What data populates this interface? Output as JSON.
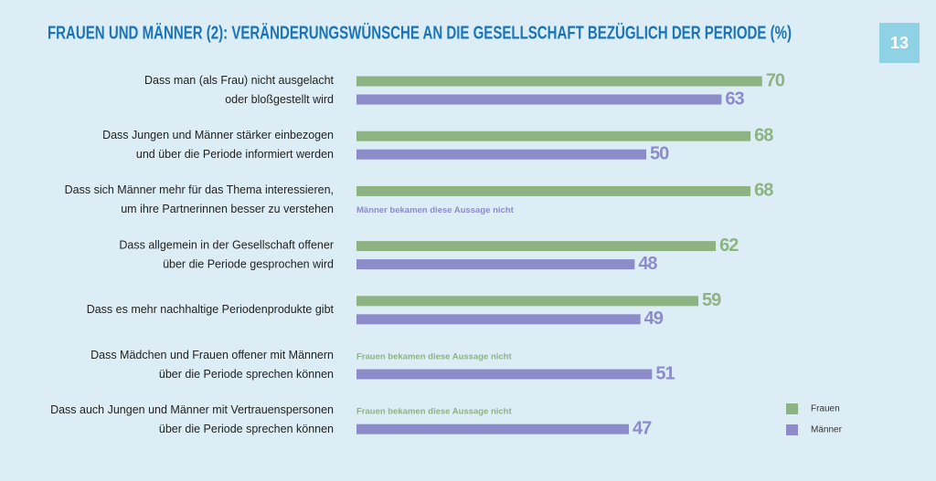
{
  "page_number": "13",
  "chart_data": {
    "type": "bar",
    "orientation": "horizontal",
    "title": "FRAUEN UND MÄNNER (2): VERÄNDERUNGSWÜNSCHE AN DIE GESELLSCHAFT BEZÜGLICH DER PERIODE (%)",
    "categories": [
      [
        "Dass man (als Frau) nicht ausgelacht",
        "oder bloßgestellt wird"
      ],
      [
        "Dass Jungen und Männer stärker einbezogen",
        "und über die Periode informiert werden"
      ],
      [
        "Dass sich Männer mehr für das Thema interessieren,",
        "um ihre Partnerinnen besser zu verstehen"
      ],
      [
        "Dass allgemein in der Gesellschaft offener",
        "über die Periode gesprochen wird"
      ],
      [
        "Dass es mehr nachhaltige Periodenprodukte gibt"
      ],
      [
        "Dass Mädchen und Frauen offener mit Männern",
        "über die Periode sprechen können"
      ],
      [
        "Dass auch Jungen und Männer mit Vertrauenspersonen",
        "über die Periode sprechen können"
      ]
    ],
    "series": [
      {
        "name": "Frauen",
        "color": "#8db383",
        "values": [
          70,
          68,
          68,
          62,
          59,
          null,
          null
        ]
      },
      {
        "name": "Männer",
        "color": "#8c8ccb",
        "values": [
          63,
          50,
          null,
          48,
          49,
          51,
          47
        ]
      }
    ],
    "annotations": [
      {
        "series": 1,
        "category": 2,
        "text": "Männer bekamen diese Aussage nicht"
      },
      {
        "series": 0,
        "category": 5,
        "text": "Frauen bekamen diese Aussage nicht"
      },
      {
        "series": 0,
        "category": 6,
        "text": "Frauen bekamen diese Aussage nicht"
      }
    ],
    "legend": "bottom-right"
  }
}
